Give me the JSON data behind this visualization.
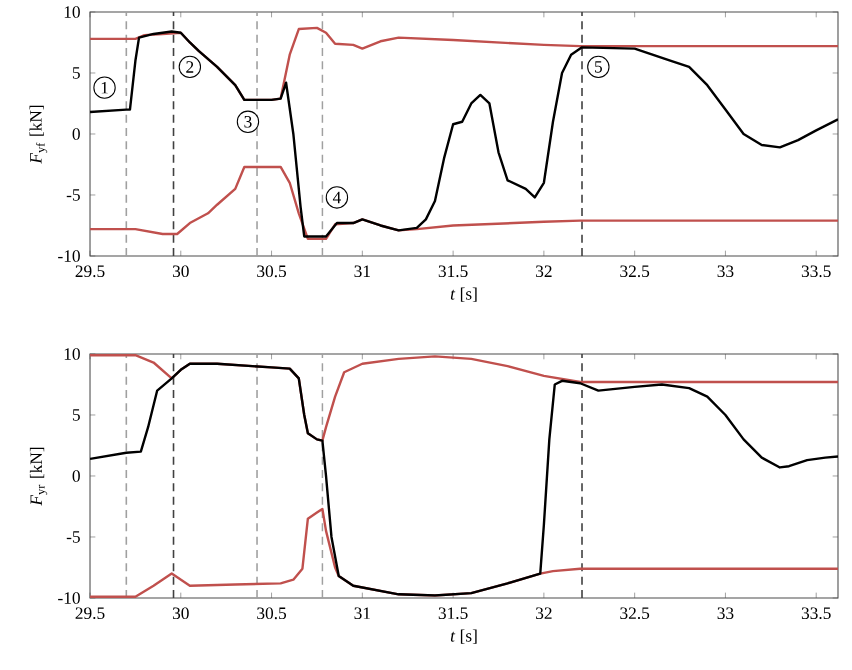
{
  "chart_data": [
    {
      "type": "line",
      "xlabel": "*t* [s]",
      "ylabel": "*F*$_{yf}$ [kN]",
      "xlim": [
        29.5,
        33.62
      ],
      "ylim": [
        -10,
        10
      ],
      "xticks": [
        29.5,
        30,
        30.5,
        31,
        31.5,
        32,
        32.5,
        33,
        33.5
      ],
      "yticks": [
        -10,
        -5,
        0,
        5,
        10
      ],
      "series": [
        {
          "color": "#c0504d",
          "x": [
            29.5,
            29.75,
            29.8,
            29.9,
            30.0,
            30.05,
            30.1,
            30.2,
            30.3,
            30.35,
            30.5,
            30.55,
            30.6,
            30.65,
            30.75,
            30.8,
            30.85,
            30.95,
            31.0,
            31.1,
            31.2,
            31.5,
            32.0,
            32.2,
            33.62
          ],
          "values": [
            7.8,
            7.8,
            8.1,
            8.2,
            8.3,
            7.5,
            6.8,
            5.5,
            4.0,
            2.8,
            2.8,
            2.9,
            6.5,
            8.6,
            8.7,
            8.3,
            7.4,
            7.3,
            7.0,
            7.6,
            7.9,
            7.7,
            7.3,
            7.2,
            7.2
          ]
        },
        {
          "color": "#c0504d",
          "x": [
            29.5,
            29.75,
            29.9,
            29.98,
            30.05,
            30.15,
            30.2,
            30.3,
            30.35,
            30.55,
            30.6,
            30.65,
            30.7,
            30.8,
            30.85,
            30.95,
            31.0,
            31.1,
            31.2,
            31.3,
            31.5,
            32.0,
            32.2,
            33.62
          ],
          "values": [
            -7.8,
            -7.8,
            -8.2,
            -8.2,
            -7.3,
            -6.5,
            -5.8,
            -4.5,
            -2.7,
            -2.7,
            -4,
            -6.5,
            -8.6,
            -8.6,
            -7.4,
            -7.3,
            -7.0,
            -7.5,
            -7.9,
            -7.8,
            -7.5,
            -7.2,
            -7.1,
            -7.1
          ]
        },
        {
          "color": "#000000",
          "x": [
            29.5,
            29.7,
            29.72,
            29.75,
            29.77,
            29.85,
            29.95,
            30.0,
            30.05,
            30.1,
            30.2,
            30.3,
            30.35,
            30.5,
            30.55,
            30.58,
            30.62,
            30.66,
            30.68,
            30.8,
            30.86,
            30.95,
            31.0,
            31.1,
            31.2,
            31.3,
            31.35,
            31.4,
            31.45,
            31.5,
            31.55,
            31.6,
            31.65,
            31.7,
            31.75,
            31.8,
            31.9,
            31.95,
            32.0,
            32.05,
            32.1,
            32.15,
            32.21,
            32.5,
            32.7,
            32.8,
            32.9,
            33.0,
            33.1,
            33.2,
            33.3,
            33.4,
            33.5,
            33.62
          ],
          "values": [
            1.8,
            2.0,
            2.0,
            6,
            7.9,
            8.2,
            8.4,
            8.3,
            7.5,
            6.8,
            5.5,
            4.0,
            2.8,
            2.8,
            2.9,
            4.2,
            0,
            -6,
            -8.4,
            -8.4,
            -7.3,
            -7.3,
            -7.0,
            -7.5,
            -7.9,
            -7.7,
            -7,
            -5.5,
            -2,
            0.8,
            1,
            2.5,
            3.2,
            2.5,
            -1.5,
            -3.8,
            -4.5,
            -5.2,
            -4,
            1,
            5,
            6.5,
            7.1,
            7.0,
            6.0,
            5.5,
            4,
            2,
            0,
            -0.9,
            -1.1,
            -0.5,
            0.3,
            1.2
          ]
        }
      ],
      "ref_lines": [
        {
          "axis": "x",
          "value": 29.7,
          "color": "#a0a0a0",
          "line_style": "dashed"
        },
        {
          "axis": "x",
          "value": 29.96,
          "color": "#404040",
          "line_style": "dashed"
        },
        {
          "axis": "x",
          "value": 30.42,
          "color": "#a0a0a0",
          "line_style": "dashed"
        },
        {
          "axis": "x",
          "value": 30.78,
          "color": "#a0a0a0",
          "line_style": "dashed"
        },
        {
          "axis": "x",
          "value": 32.21,
          "color": "#404040",
          "line_style": "dashed"
        }
      ],
      "annotations": [
        {
          "text": "1",
          "x": 29.58,
          "y": 3.8
        },
        {
          "text": "2",
          "x": 30.05,
          "y": 5.5
        },
        {
          "text": "3",
          "x": 30.37,
          "y": 1.0
        },
        {
          "text": "4",
          "x": 30.86,
          "y": -5.2
        },
        {
          "text": "5",
          "x": 32.3,
          "y": 5.5
        }
      ]
    },
    {
      "type": "line",
      "xlabel": "*t* [s]",
      "ylabel": "*F*$_{yr}$ [kN]",
      "xlim": [
        29.5,
        33.62
      ],
      "ylim": [
        -10,
        10
      ],
      "xticks": [
        29.5,
        30,
        30.5,
        31,
        31.5,
        32,
        32.5,
        33,
        33.5
      ],
      "yticks": [
        -10,
        -5,
        0,
        5,
        10
      ],
      "series": [
        {
          "color": "#c0504d",
          "x": [
            29.5,
            29.75,
            29.85,
            29.95,
            30.0,
            30.05,
            30.2,
            30.5,
            30.6,
            30.65,
            30.68,
            30.7,
            30.75,
            30.78,
            30.8,
            30.85,
            30.9,
            31.0,
            31.2,
            31.4,
            31.6,
            31.8,
            32.0,
            32.2,
            33.62
          ],
          "values": [
            9.9,
            9.9,
            9.3,
            8.0,
            8.7,
            9.2,
            9.2,
            8.9,
            8.8,
            8.0,
            5,
            3.5,
            3.0,
            2.9,
            4,
            6.5,
            8.5,
            9.2,
            9.6,
            9.8,
            9.6,
            9.0,
            8.2,
            7.7,
            7.7
          ]
        },
        {
          "color": "#c0504d",
          "x": [
            29.5,
            29.75,
            29.85,
            29.95,
            30.05,
            30.3,
            30.55,
            30.62,
            30.67,
            30.7,
            30.75,
            30.78,
            30.8,
            30.85,
            30.87,
            30.95,
            31.2,
            31.4,
            31.6,
            31.8,
            31.98,
            32.05,
            32.2,
            33.62
          ],
          "values": [
            -9.9,
            -9.9,
            -9.0,
            -8.0,
            -9.0,
            -8.9,
            -8.8,
            -8.5,
            -7.6,
            -3.5,
            -3.0,
            -2.7,
            -4.5,
            -7.5,
            -8.2,
            -9,
            -9.7,
            -9.8,
            -9.6,
            -8.8,
            -8,
            -7.8,
            -7.6,
            -7.6
          ]
        },
        {
          "color": "#000000",
          "x": [
            29.5,
            29.7,
            29.78,
            29.82,
            29.87,
            29.95,
            30.0,
            30.05,
            30.2,
            30.5,
            30.6,
            30.65,
            30.68,
            30.7,
            30.75,
            30.78,
            30.8,
            30.83,
            30.87,
            30.95,
            31.2,
            31.4,
            31.6,
            31.8,
            31.98,
            32.0,
            32.03,
            32.06,
            32.1,
            32.2,
            32.3,
            32.5,
            32.65,
            32.8,
            32.9,
            33.0,
            33.1,
            33.2,
            33.3,
            33.35,
            33.45,
            33.55,
            33.62
          ],
          "values": [
            1.4,
            1.9,
            2.0,
            4,
            7,
            8.0,
            8.7,
            9.2,
            9.2,
            8.9,
            8.8,
            8.0,
            5,
            3.5,
            3.0,
            2.9,
            0,
            -5,
            -8.2,
            -9,
            -9.7,
            -9.8,
            -9.6,
            -8.8,
            -8,
            -4,
            3,
            7.5,
            7.8,
            7.6,
            7.0,
            7.3,
            7.5,
            7.2,
            6.5,
            5,
            3,
            1.5,
            0.7,
            0.8,
            1.3,
            1.5,
            1.6
          ]
        }
      ],
      "ref_lines": [
        {
          "axis": "x",
          "value": 29.7,
          "color": "#a0a0a0",
          "line_style": "dashed"
        },
        {
          "axis": "x",
          "value": 29.96,
          "color": "#404040",
          "line_style": "dashed"
        },
        {
          "axis": "x",
          "value": 30.42,
          "color": "#a0a0a0",
          "line_style": "dashed"
        },
        {
          "axis": "x",
          "value": 30.78,
          "color": "#a0a0a0",
          "line_style": "dashed"
        },
        {
          "axis": "x",
          "value": 32.21,
          "color": "#404040",
          "line_style": "dashed"
        }
      ]
    }
  ]
}
